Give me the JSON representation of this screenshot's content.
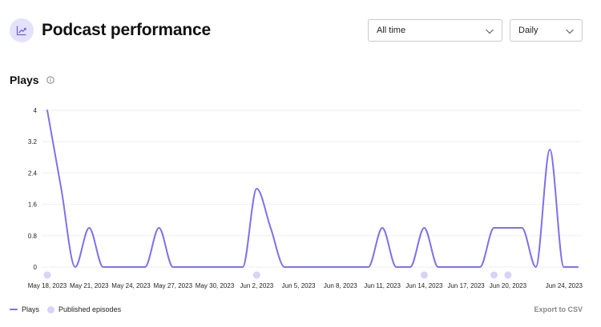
{
  "header": {
    "title": "Podcast performance",
    "icon": "trending-chart-icon"
  },
  "filters": {
    "range": {
      "selected": "All time"
    },
    "interval": {
      "selected": "Daily"
    }
  },
  "section": {
    "title": "Plays",
    "info_icon": "info-icon"
  },
  "legend": {
    "plays_label": "Plays",
    "episodes_label": "Published episodes"
  },
  "export_label": "Export to CSV",
  "colors": {
    "line": "#7c72ec",
    "episode_marker": "#d6d2fa",
    "grid": "#eeeeee",
    "icon_bg": "#e4e2fb"
  },
  "chart_data": {
    "type": "line",
    "title": "",
    "xlabel": "",
    "ylabel": "",
    "y_ticks": [
      "0",
      "0.8",
      "1.6",
      "2.4",
      "3.2",
      "4"
    ],
    "ylim": [
      0,
      4
    ],
    "x_ticks": [
      "May 18, 2023",
      "May 21, 2023",
      "May 24, 2023",
      "May 27, 2023",
      "May 30, 2023",
      "Jun 2, 2023",
      "Jun 5, 2023",
      "Jun 8, 2023",
      "Jun 11, 2023",
      "Jun 14, 2023",
      "Jun 17, 2023",
      "Jun 20, 2023",
      "Jun 24, 2023"
    ],
    "grid": true,
    "series": [
      {
        "name": "Plays",
        "dates": [
          "May 18, 2023",
          "May 19, 2023",
          "May 20, 2023",
          "May 21, 2023",
          "May 22, 2023",
          "May 23, 2023",
          "May 24, 2023",
          "May 25, 2023",
          "May 26, 2023",
          "May 27, 2023",
          "May 28, 2023",
          "May 29, 2023",
          "May 30, 2023",
          "May 31, 2023",
          "Jun 1, 2023",
          "Jun 2, 2023",
          "Jun 3, 2023",
          "Jun 4, 2023",
          "Jun 5, 2023",
          "Jun 6, 2023",
          "Jun 7, 2023",
          "Jun 8, 2023",
          "Jun 9, 2023",
          "Jun 10, 2023",
          "Jun 11, 2023",
          "Jun 12, 2023",
          "Jun 13, 2023",
          "Jun 14, 2023",
          "Jun 15, 2023",
          "Jun 16, 2023",
          "Jun 17, 2023",
          "Jun 18, 2023",
          "Jun 19, 2023",
          "Jun 20, 2023",
          "Jun 21, 2023",
          "Jun 22, 2023",
          "Jun 23, 2023",
          "Jun 24, 2023",
          "Jun 25, 2023"
        ],
        "values": [
          4,
          2,
          0,
          1,
          0,
          0,
          0,
          0,
          1,
          0,
          0,
          0,
          0,
          0,
          0,
          2,
          1,
          0,
          0,
          0,
          0,
          0,
          0,
          0,
          1,
          0,
          0,
          1,
          0,
          0,
          0,
          0,
          1,
          1,
          1,
          0,
          3,
          0,
          0
        ]
      }
    ],
    "published_episodes": [
      "May 18, 2023",
      "Jun 2, 2023",
      "Jun 14, 2023",
      "Jun 19, 2023",
      "Jun 20, 2023"
    ]
  }
}
